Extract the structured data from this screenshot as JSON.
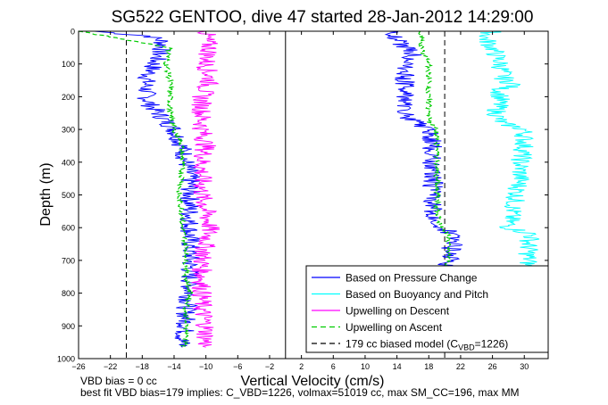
{
  "chart_data": {
    "type": "line",
    "title": "SG522 GENTOO, dive 47 started 28-Jan-2012 14:29:00",
    "xlabel": "Vertical Velocity (cm/s)",
    "ylabel": "Depth (m)",
    "xlim": [
      -26,
      33
    ],
    "ylim": [
      1000,
      0
    ],
    "y_reversed": true,
    "xticks": [
      -26,
      -22,
      -18,
      -14,
      -10,
      -6,
      -2,
      2,
      6,
      10,
      14,
      18,
      22,
      26,
      30
    ],
    "yticks": [
      0,
      100,
      200,
      300,
      400,
      500,
      600,
      700,
      800,
      900,
      1000
    ],
    "grid": false,
    "legend_position": "bottom-right",
    "vertical_lines": [
      {
        "x": -20,
        "style": "dashed",
        "color": "#000000"
      },
      {
        "x": 0,
        "style": "solid",
        "color": "#000000"
      },
      {
        "x": 20,
        "style": "dashed",
        "color": "#000000"
      }
    ],
    "series": [
      {
        "name": "Based on Pressure Change",
        "color": "#0000ff",
        "style": "solid",
        "groups": [
          {
            "depth": [
              0,
              15,
              30,
              50,
              75,
              100,
              125,
              150,
              175,
              200,
              225,
              250,
              275,
              300,
              350,
              400,
              450,
              500,
              550,
              600,
              650,
              700,
              750,
              800,
              850,
              900,
              950,
              965
            ],
            "velocity": [
              -24,
              -17,
              -15.5,
              -15.5,
              -16,
              -16.5,
              -17,
              -17.5,
              -17.5,
              -17.5,
              -17,
              -16,
              -15,
              -14,
              -13,
              -12.5,
              -12,
              -12,
              -12,
              -12,
              -12,
              -12,
              -12,
              -12,
              -12.5,
              -12.5,
              -13,
              -13
            ]
          },
          {
            "depth": [
              965,
              950,
              900,
              850,
              800,
              750,
              700,
              650,
              620,
              600,
              550,
              500,
              450,
              400,
              350,
              300,
              275,
              250,
              225,
              200,
              175,
              150,
              125,
              100,
              75,
              50,
              25,
              0
            ],
            "velocity": [
              20.5,
              20,
              20,
              20,
              20,
              20.2,
              20.5,
              21,
              21,
              19.5,
              18.5,
              18.5,
              18.5,
              18.5,
              18.5,
              18,
              16,
              15,
              15,
              15,
              15,
              15,
              15,
              15.5,
              16,
              15,
              14,
              13
            ]
          }
        ]
      },
      {
        "name": "Based on Buoyancy and Pitch",
        "color": "#00ffff",
        "style": "solid",
        "groups": [
          {
            "depth": [
              0,
              20,
              50,
              100,
              150,
              165,
              175,
              200,
              250,
              280,
              300,
              320,
              350,
              400,
              450,
              500,
              550,
              600,
              620,
              650,
              700,
              740
            ],
            "velocity": [
              26,
              25,
              26,
              27,
              27.5,
              29,
              27,
              27,
              26.5,
              27,
              30,
              30,
              30,
              29.5,
              29.5,
              29,
              28.5,
              28,
              31,
              30.5,
              30.5,
              30.5
            ]
          }
        ]
      },
      {
        "name": "Upwelling on Descent",
        "color": "#ff00ff",
        "style": "solid",
        "groups": [
          {
            "depth": [
              0,
              25,
              50,
              100,
              150,
              200,
              250,
              300,
              350,
              400,
              450,
              500,
              550,
              600,
              650,
              700,
              750,
              800,
              850,
              900,
              950,
              965
            ],
            "velocity": [
              -10,
              -10,
              -9.5,
              -10,
              -9.5,
              -10.5,
              -10.5,
              -10.5,
              -10,
              -10.5,
              -10.5,
              -10.5,
              -10,
              -9.5,
              -10,
              -10.5,
              -10.5,
              -10.5,
              -10.5,
              -10,
              -10,
              -10
            ]
          }
        ]
      },
      {
        "name": "Upwelling on Ascent",
        "color": "#00cc00",
        "style": "dashed",
        "groups": [
          {
            "depth": [
              0,
              50,
              100,
              150,
              200,
              250,
              300,
              350,
              400,
              450,
              500,
              550,
              600,
              650,
              700,
              750,
              800,
              850,
              900,
              950,
              965
            ],
            "velocity": [
              -26,
              -14.5,
              -15,
              -14.5,
              -14.5,
              -14.5,
              -14,
              -13,
              -13,
              -13,
              -13.5,
              -13,
              -13,
              -12.5,
              -12.5,
              -12.5,
              -12,
              -12.5,
              -12.5,
              -12.5,
              -13
            ]
          },
          {
            "depth": [
              965,
              950,
              900,
              850,
              800,
              750,
              700,
              650,
              620,
              600,
              550,
              500,
              450,
              400,
              350,
              300,
              275,
              250,
              200,
              150,
              100,
              50,
              0
            ],
            "velocity": [
              20.5,
              20,
              20,
              20,
              20,
              20,
              20.5,
              20.5,
              20.5,
              19.5,
              19,
              19,
              19,
              19,
              19,
              19,
              18,
              18,
              18,
              18,
              18,
              17,
              17
            ]
          }
        ]
      },
      {
        "name": "179 cc biased model (C_VBD=1226)",
        "color": "#000000",
        "style": "dashed",
        "groups": []
      }
    ],
    "legend": {
      "entries": [
        {
          "label": "Based on Pressure Change",
          "color": "#0000ff",
          "style": "solid"
        },
        {
          "label": "Based on Buoyancy and Pitch",
          "color": "#00ffff",
          "style": "solid"
        },
        {
          "label": "Upwelling on Descent",
          "color": "#ff00ff",
          "style": "solid"
        },
        {
          "label": "Upwelling on Ascent",
          "color": "#00cc00",
          "style": "dashed"
        },
        {
          "label": "179 cc biased model (C",
          "sub": "VBD",
          "tail": "=1226)",
          "color": "#000000",
          "style": "dashed"
        }
      ]
    }
  },
  "notes": {
    "vbd_bias": "VBD bias = 0 cc",
    "best_fit": "best fit VBD bias=179 implies: C_VBD=1226, volmax=51019 cc, max SM_CC=196, max MM"
  }
}
